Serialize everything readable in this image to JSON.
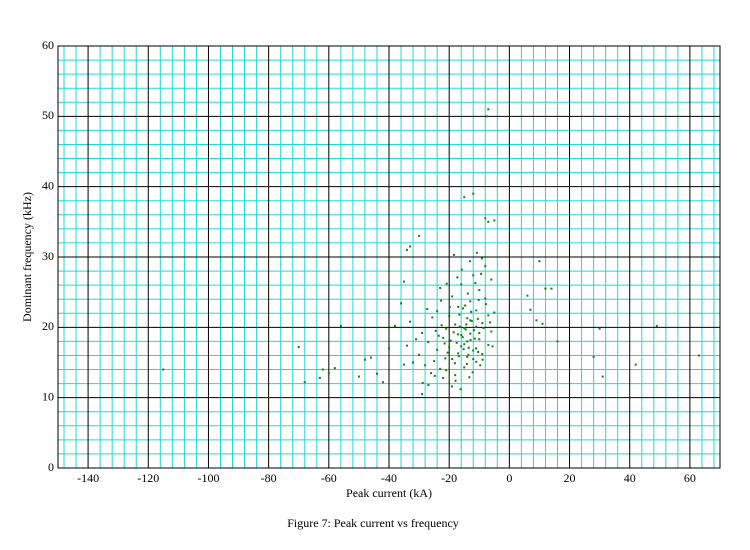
{
  "chart_data": {
    "type": "scatter",
    "title": "Figure 7: Peak current vs frequency",
    "xlabel": "Peak current (kA)",
    "ylabel": "Dominant frequency (kHz)",
    "color": "#108010",
    "grid": true,
    "grid_color": "#22d8d8",
    "major_grid_color": "#000000",
    "minor_grid": {
      "x_divisions": 5,
      "y_divisions": 5
    },
    "xlim": [
      -150,
      70
    ],
    "ylim": [
      0,
      60
    ],
    "xticks": [
      -140,
      -120,
      -100,
      -80,
      -60,
      -40,
      -20,
      0,
      20,
      40,
      60
    ],
    "yticks": [
      0,
      10,
      20,
      30,
      40,
      50,
      60
    ],
    "x": [
      -115,
      -70,
      -68,
      -63,
      -62,
      -60,
      -58,
      -56,
      -50,
      -48,
      -46,
      -44,
      -42,
      -40,
      -38,
      -36,
      -35,
      -33,
      -34,
      -30,
      -29,
      -7,
      -7.5,
      -12,
      -15,
      -8,
      -7,
      -5,
      6,
      7,
      9,
      10,
      11,
      12,
      14,
      16,
      28,
      30,
      31,
      42,
      49,
      63,
      -25,
      -24,
      -23,
      -22,
      -21,
      -20,
      -19,
      -18,
      -17,
      -16,
      -15,
      -14,
      -13,
      -12,
      -11,
      -10,
      -9,
      -8,
      -7,
      -6,
      -26,
      -27,
      -28,
      -29,
      -30,
      -31,
      -32,
      -33,
      -34,
      -35,
      -24,
      -23,
      -22,
      -21,
      -20,
      -19,
      -18,
      -17,
      -16,
      -15,
      -14,
      -13,
      -12,
      -11,
      -10,
      -9,
      -8,
      -7,
      -6,
      -5,
      -19.5,
      -18.5,
      -17.5,
      -16.5,
      -15.5,
      -14.5,
      -13.5,
      -12.5,
      -11.5,
      -10.5,
      -20.5,
      -21.5,
      -22.5,
      -23.5,
      -24.5,
      -16.8,
      -15.2,
      -14.1,
      -13.3,
      -12.2,
      -17.9,
      -19.1,
      -16.2,
      -14.7,
      -13.8,
      -12.7,
      -11.3,
      -10.2,
      -9.4,
      -8.6,
      -7.8,
      -6.4,
      -5.6,
      -15.8,
      -13.1,
      -10.8,
      -9.1,
      -17.3,
      -20.8,
      -18.4,
      -22.7,
      -25.6,
      -27.3,
      -28.8,
      -26.9,
      -24.8,
      -16.6,
      -15.4,
      -14.3,
      -13.6,
      -12.9,
      -11.8,
      -11.1,
      -10.4,
      -9.7,
      -8.9,
      -18.1,
      -19.8,
      -21.3,
      -17.1,
      -16.0,
      -15.0,
      -14.0,
      -13.0,
      -12.0,
      -11.0,
      -10.0
    ],
    "y": [
      14,
      17.2,
      12.2,
      12.8,
      14,
      13.5,
      14.2,
      20.2,
      13,
      15.4,
      15.7,
      13.4,
      12.2,
      17,
      20.2,
      23.4,
      26.5,
      31.5,
      31,
      33,
      10.5,
      51,
      50,
      39,
      38.5,
      35.5,
      35,
      35.2,
      24.5,
      22.5,
      21,
      29.4,
      20.5,
      25.5,
      25.5,
      18,
      15.8,
      19.8,
      13,
      14.7,
      20.2,
      16,
      15.2,
      16.8,
      14.1,
      18.5,
      19.8,
      17.2,
      15.5,
      20.4,
      16.3,
      18.9,
      17.6,
      21.3,
      19.1,
      16.7,
      22.4,
      18.3,
      20.6,
      24.1,
      21.7,
      19.4,
      13.5,
      17.9,
      14.6,
      19.2,
      16.1,
      18.3,
      15.0,
      20.8,
      17.4,
      14.7,
      22.3,
      25.6,
      12.8,
      13.9,
      21.6,
      24.4,
      13.2,
      22.9,
      26.1,
      14.3,
      15.8,
      23.7,
      27.4,
      15.1,
      25.3,
      16.2,
      28.7,
      17.5,
      26.8,
      22.1,
      18.1,
      19.3,
      17.8,
      20.1,
      18.6,
      19.7,
      17.1,
      20.9,
      18.4,
      21.2,
      16.4,
      17.7,
      20.3,
      18.8,
      19.5,
      15.9,
      16.9,
      14.8,
      12.9,
      13.6,
      12.4,
      11.6,
      11.2,
      23.1,
      24.8,
      22.2,
      26.3,
      23.9,
      27.6,
      19.9,
      23.3,
      20.7,
      17.3,
      28.2,
      29.4,
      30.6,
      29.8,
      27.1,
      26.2,
      30.3,
      23.8,
      21.4,
      22.6,
      12.1,
      11.8,
      13.1,
      21.8,
      22.7,
      20.4,
      16.1,
      18.2,
      19.6,
      17.0,
      16.5,
      14.6,
      15.4,
      14.9,
      22.9,
      15.6,
      19.0,
      17.3,
      19.9,
      18.0,
      21.0,
      15.5,
      20.1,
      19.2
    ]
  }
}
